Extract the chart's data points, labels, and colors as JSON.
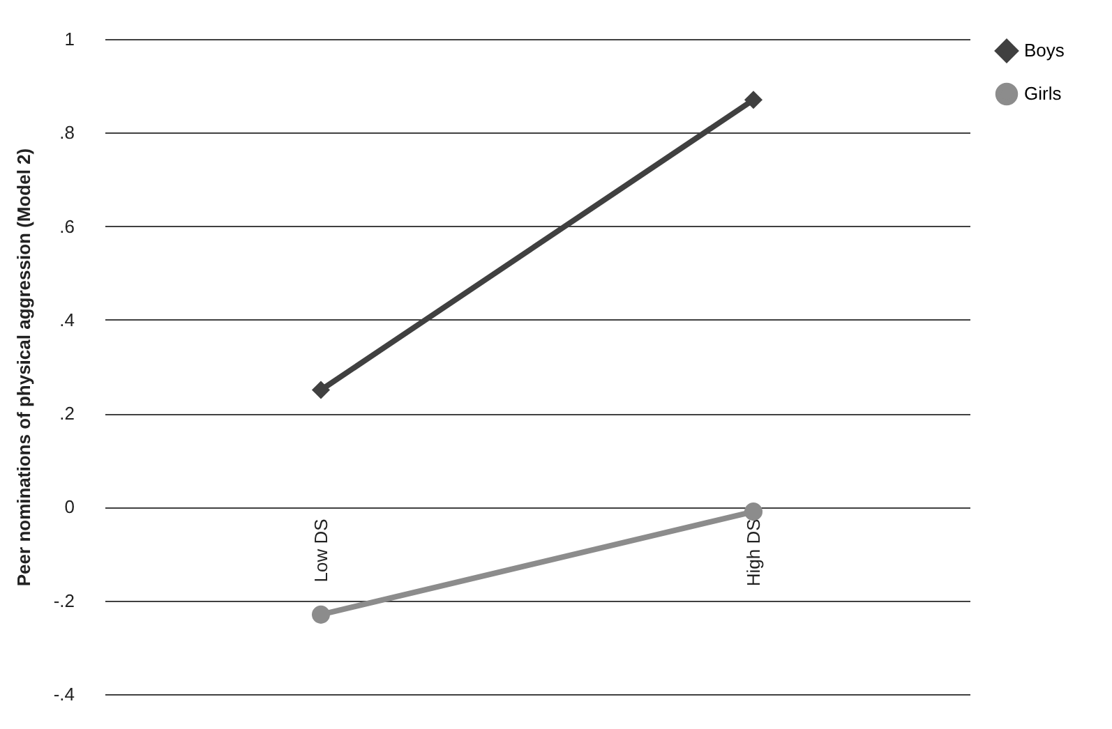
{
  "chart_data": {
    "type": "line",
    "ylabel": "Peer nominations of physical aggression (Model 2)",
    "categories": [
      "Low DS",
      "High DS"
    ],
    "series": [
      {
        "name": "Boys",
        "color": "#404040",
        "marker": "diamond",
        "values": [
          0.25,
          0.87
        ]
      },
      {
        "name": "Girls",
        "color": "#8c8c8c",
        "marker": "circle",
        "values": [
          -0.23,
          -0.01
        ]
      }
    ],
    "ylim": [
      -0.4,
      1
    ],
    "yticks": [
      {
        "value": -0.4,
        "label": "-.4"
      },
      {
        "value": -0.2,
        "label": "-.2"
      },
      0,
      {
        "value": 0.2,
        "label": ".2"
      },
      {
        "value": 0.4,
        "label": ".4"
      },
      {
        "value": 0.6,
        "label": ".6"
      },
      {
        "value": 0.8,
        "label": ".8"
      },
      1
    ],
    "grid": "y",
    "legend": "right"
  }
}
